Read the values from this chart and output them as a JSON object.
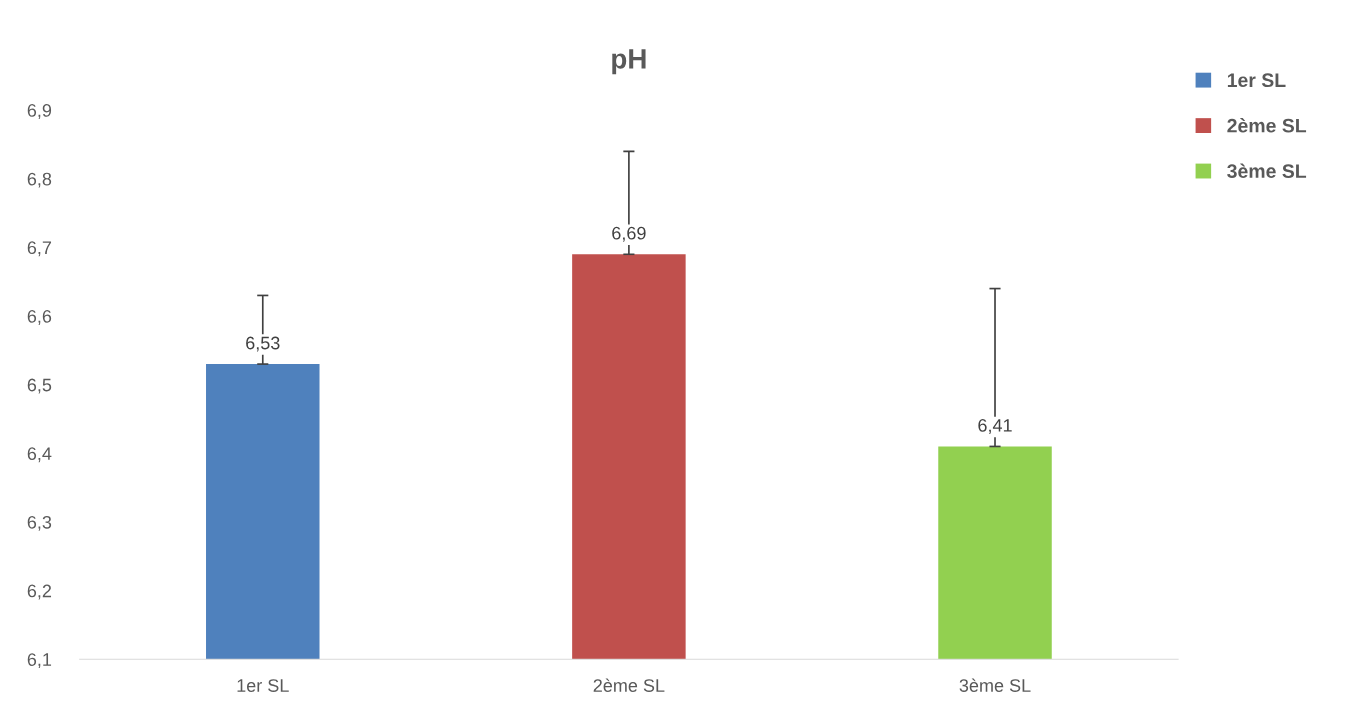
{
  "chart_data": {
    "type": "bar",
    "title": "pH",
    "categories": [
      "1er SL",
      "2ème SL",
      "3ème SL"
    ],
    "series": [
      {
        "name": "1er SL",
        "color": "#4f81bd",
        "values": [
          6.53,
          null,
          null
        ],
        "errors": [
          [
            6.53,
            6.63
          ],
          null,
          null
        ],
        "value_labels": [
          "6,53",
          null,
          null
        ]
      },
      {
        "name": "2ème SL",
        "color": "#c0504d",
        "values": [
          null,
          6.69,
          null
        ],
        "errors": [
          null,
          [
            6.69,
            6.84
          ],
          null
        ],
        "value_labels": [
          null,
          "6,69",
          null
        ]
      },
      {
        "name": "3ème SL",
        "color": "#92d050",
        "values": [
          null,
          null,
          6.41
        ],
        "errors": [
          null,
          null,
          [
            6.41,
            6.64
          ]
        ],
        "value_labels": [
          null,
          null,
          "6,41"
        ]
      }
    ],
    "ylim": [
      6.1,
      6.9
    ],
    "yticks": [
      {
        "value": 6.1,
        "label": "6,1"
      },
      {
        "value": 6.2,
        "label": "6,2"
      },
      {
        "value": 6.3,
        "label": "6,3"
      },
      {
        "value": 6.4,
        "label": "6,4"
      },
      {
        "value": 6.5,
        "label": "6,5"
      },
      {
        "value": 6.6,
        "label": "6,6"
      },
      {
        "value": 6.7,
        "label": "6,7"
      },
      {
        "value": 6.8,
        "label": "6,8"
      },
      {
        "value": 6.9,
        "label": "6,9"
      }
    ],
    "grid": false,
    "legend": "top right"
  }
}
